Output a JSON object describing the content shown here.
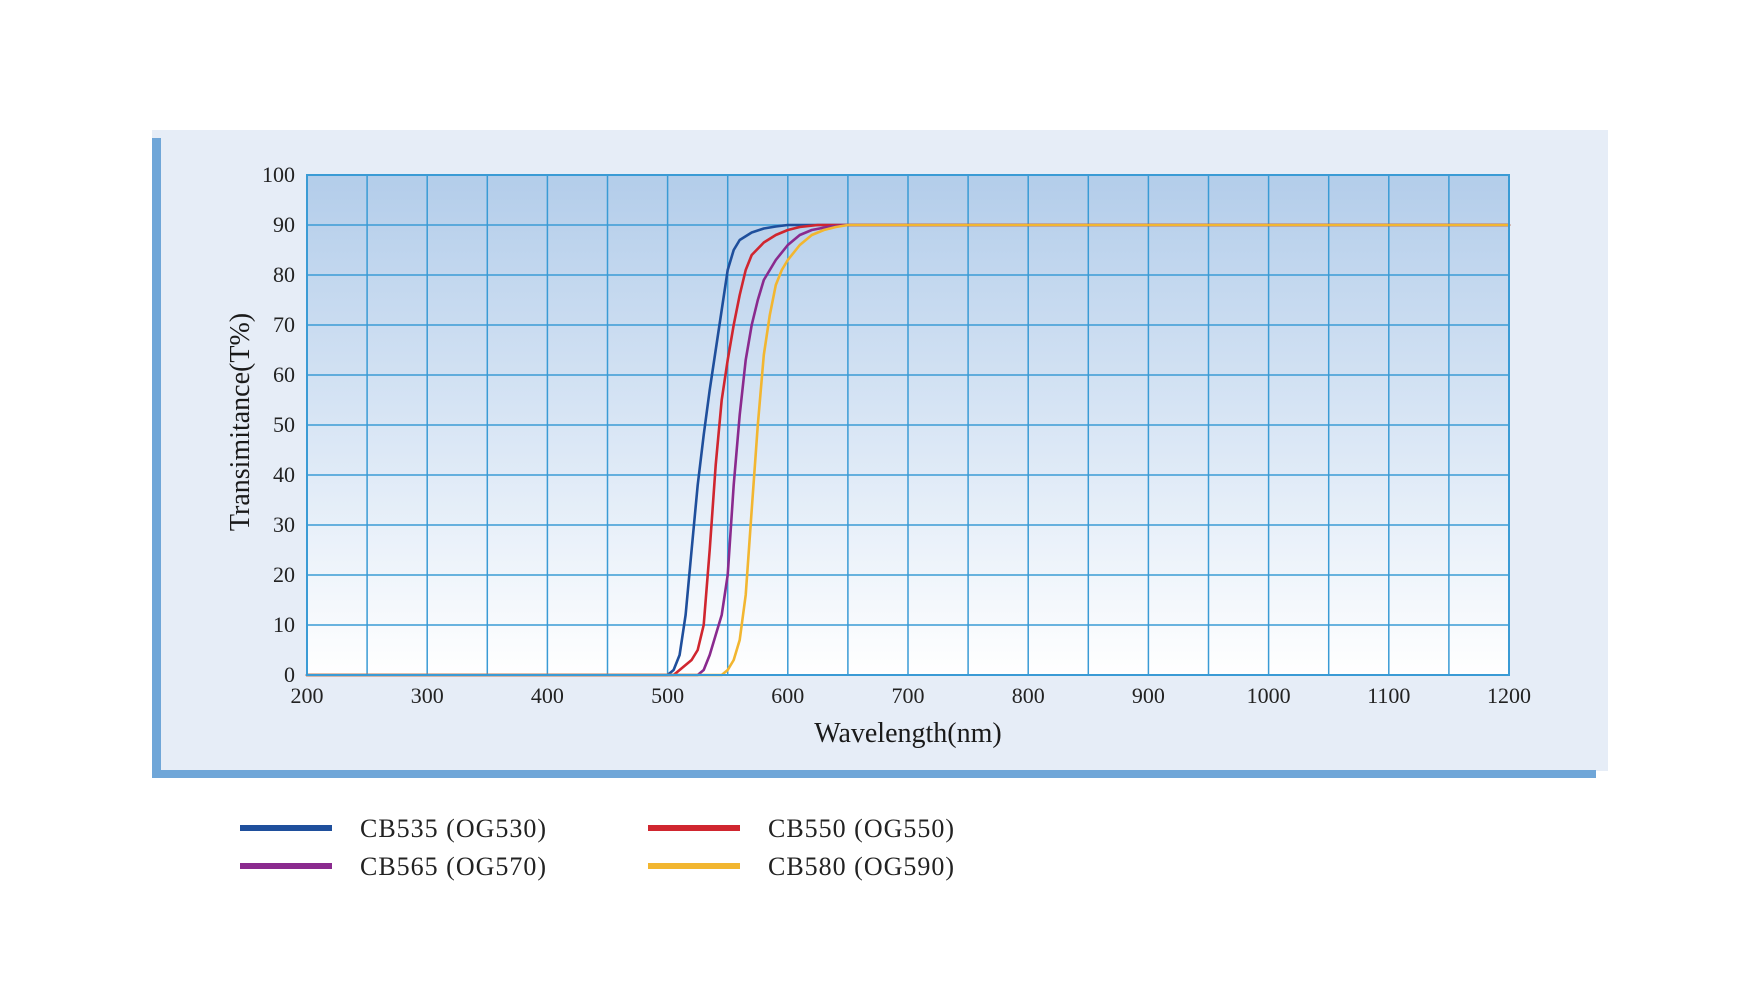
{
  "chart_data": {
    "type": "line",
    "xlabel": "Wavelength(nm)",
    "ylabel": "Transimitance(T%)",
    "xlim": [
      200,
      1200
    ],
    "ylim": [
      0,
      100
    ],
    "x_ticks": [
      "200",
      "300",
      "400",
      "500",
      "600",
      "700",
      "800",
      "900",
      "1000",
      "1100",
      "1200"
    ],
    "y_ticks": [
      "0",
      "10",
      "20",
      "30",
      "40",
      "50",
      "60",
      "70",
      "80",
      "90",
      "100"
    ],
    "grid": true,
    "legend_position": "bottom",
    "series": [
      {
        "name": "CB535 (OG530)",
        "color": "#1f4f9c",
        "x": [
          200,
          500,
          505,
          510,
          515,
          520,
          525,
          530,
          535,
          540,
          545,
          550,
          555,
          560,
          570,
          580,
          590,
          600,
          620,
          650,
          700,
          800,
          1000,
          1200
        ],
        "y": [
          0,
          0,
          1,
          4,
          12,
          25,
          38,
          48,
          57,
          65,
          73,
          81,
          85,
          87,
          88.5,
          89.3,
          89.7,
          90,
          90,
          90,
          90,
          90,
          90,
          90
        ]
      },
      {
        "name": "CB550 (OG550)",
        "color": "#d0262f",
        "x": [
          200,
          505,
          510,
          515,
          520,
          525,
          530,
          535,
          540,
          545,
          550,
          555,
          560,
          565,
          570,
          580,
          590,
          600,
          610,
          625,
          650,
          700,
          800,
          1000,
          1200
        ],
        "y": [
          0,
          0,
          1,
          2,
          3,
          5,
          10,
          25,
          42,
          55,
          63,
          70,
          76,
          81,
          84,
          86.5,
          88,
          89,
          89.6,
          90,
          90,
          90,
          90,
          90,
          90
        ]
      },
      {
        "name": "CB565 (OG570)",
        "color": "#8a2a8e",
        "x": [
          200,
          525,
          530,
          535,
          540,
          545,
          550,
          555,
          560,
          565,
          570,
          575,
          580,
          590,
          600,
          610,
          620,
          635,
          650,
          700,
          800,
          1000,
          1200
        ],
        "y": [
          0,
          0,
          1,
          4,
          8,
          12,
          20,
          38,
          52,
          63,
          70,
          75,
          79,
          83,
          86,
          88,
          89,
          89.7,
          90,
          90,
          90,
          90,
          90
        ]
      },
      {
        "name": "CB580 (OG590)",
        "color": "#f2b630",
        "x": [
          200,
          545,
          550,
          555,
          560,
          565,
          570,
          575,
          580,
          585,
          590,
          595,
          600,
          610,
          620,
          630,
          640,
          650,
          700,
          800,
          1000,
          1200
        ],
        "y": [
          0,
          0,
          1,
          3,
          7,
          16,
          33,
          50,
          64,
          72,
          78,
          81,
          83,
          86,
          88,
          89,
          89.6,
          90,
          90,
          90,
          90,
          90
        ]
      }
    ]
  },
  "legend": {
    "items": [
      {
        "label": "CB535  (OG530)",
        "color": "#1f4f9c"
      },
      {
        "label": "CB550  (OG550)",
        "color": "#d0262f"
      },
      {
        "label": "CB565  (OG570)",
        "color": "#8a2a8e"
      },
      {
        "label": "CB580  (OG590)",
        "color": "#f2b630"
      }
    ]
  }
}
